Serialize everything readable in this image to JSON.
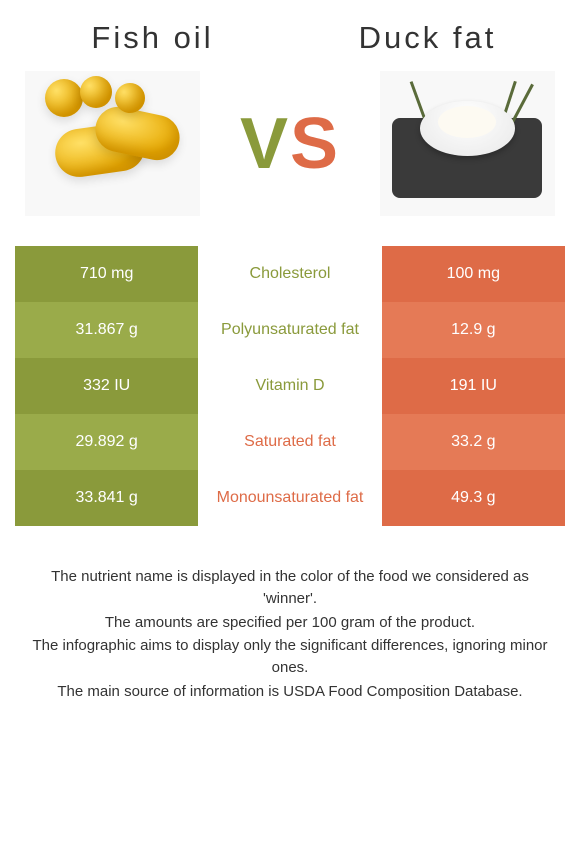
{
  "left_food": {
    "title": "Fish oil"
  },
  "right_food": {
    "title": "Duck fat"
  },
  "vs": {
    "v": "V",
    "s": "S"
  },
  "colors": {
    "left_dark": "#8a9a3b",
    "left_light": "#9aab4a",
    "right_dark": "#de6b47",
    "right_light": "#e57a56",
    "mid_green": "#8a9a3b",
    "mid_orange": "#de6b47"
  },
  "rows": [
    {
      "left": "710 mg",
      "label": "Cholesterol",
      "right": "100 mg",
      "winner": "left"
    },
    {
      "left": "31.867 g",
      "label": "Polyunsaturated fat",
      "right": "12.9 g",
      "winner": "left"
    },
    {
      "left": "332 IU",
      "label": "Vitamin D",
      "right": "191 IU",
      "winner": "left"
    },
    {
      "left": "29.892 g",
      "label": "Saturated fat",
      "right": "33.2 g",
      "winner": "right"
    },
    {
      "left": "33.841 g",
      "label": "Monounsaturated fat",
      "right": "49.3 g",
      "winner": "right"
    }
  ],
  "footer": {
    "l1": "The nutrient name is displayed in the color of the food we considered as 'winner'.",
    "l2": "The amounts are specified per 100 gram of the product.",
    "l3": "The infographic aims to display only the significant differences, ignoring minor ones.",
    "l4": "The main source of information is USDA Food Composition Database."
  }
}
